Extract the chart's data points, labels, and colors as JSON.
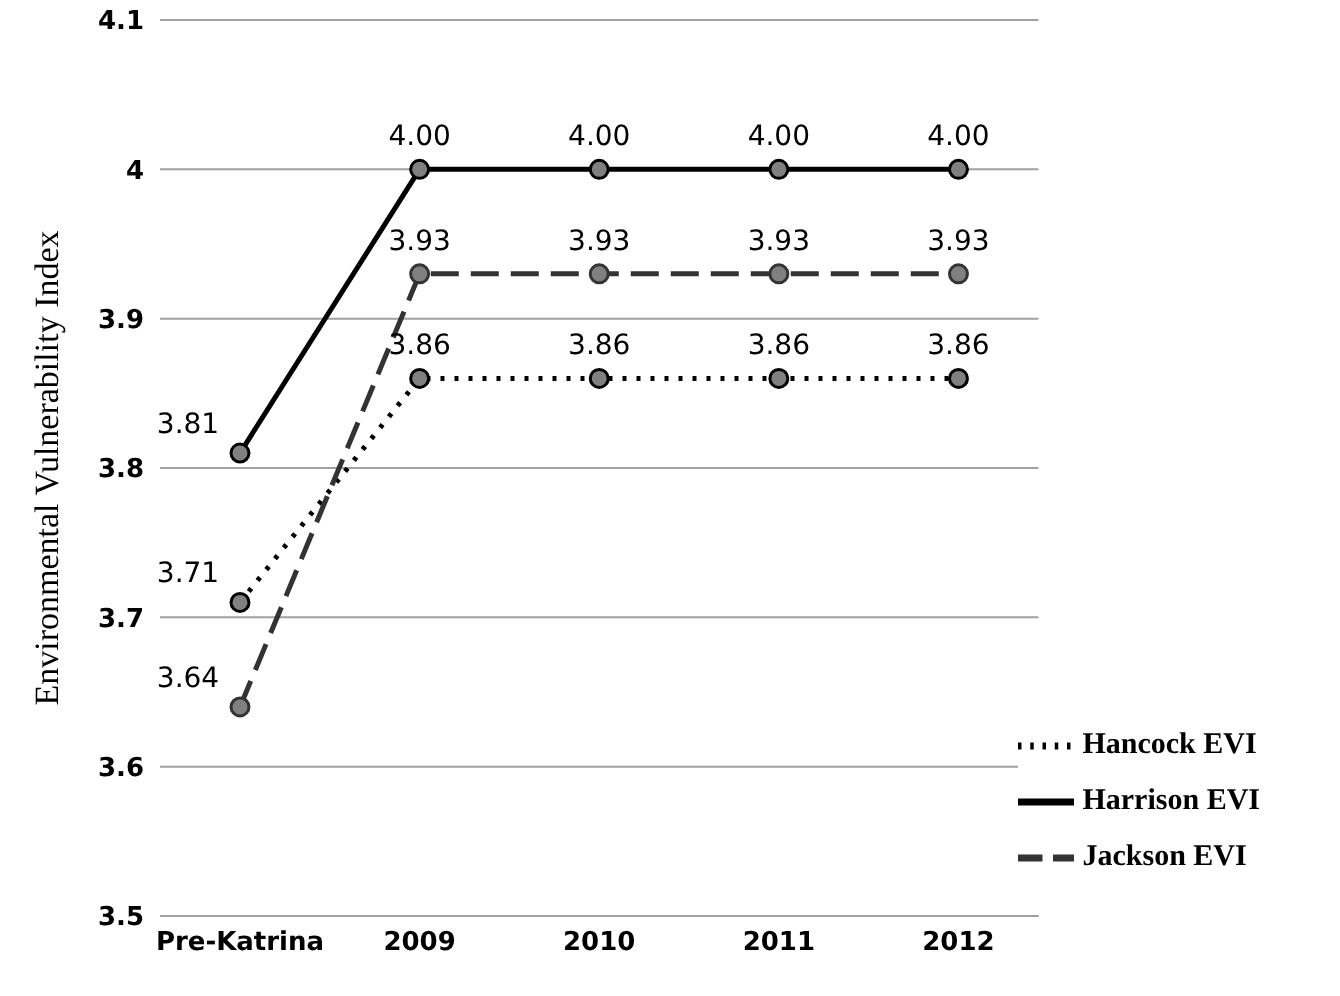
{
  "chart_data": {
    "type": "line",
    "ylabel": "Environmental Vulnerability Index",
    "categories": [
      "Pre-Katrina",
      "2009",
      "2010",
      "2011",
      "2012"
    ],
    "series": [
      {
        "name": "Hancock EVI",
        "color": "#000000",
        "line_style": "dotted",
        "values": [
          3.71,
          3.86,
          3.86,
          3.86,
          3.86
        ],
        "value_labels": [
          "3.71",
          "3.86",
          "3.86",
          "3.86",
          "3.86"
        ]
      },
      {
        "name": "Harrison EVI",
        "color": "#000000",
        "line_style": "solid",
        "values": [
          3.81,
          4.0,
          4.0,
          4.0,
          4.0
        ],
        "value_labels": [
          "3.81",
          "4.00",
          "4.00",
          "4.00",
          "4.00"
        ]
      },
      {
        "name": "Jackson EVI",
        "color": "#333333",
        "line_style": "dashed",
        "values": [
          3.64,
          3.93,
          3.93,
          3.93,
          3.93
        ],
        "value_labels": [
          "3.64",
          "3.93",
          "3.93",
          "3.93",
          "3.93"
        ]
      }
    ],
    "ylim": [
      3.5,
      4.1
    ],
    "yticks": [
      3.5,
      3.6,
      3.7,
      3.8,
      3.9,
      4,
      4.1
    ],
    "grid": "y",
    "legend": "bottom right",
    "marker": "circle"
  }
}
